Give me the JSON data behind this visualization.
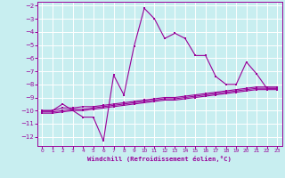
{
  "background_color": "#c8eef0",
  "grid_color": "#ffffff",
  "line_color": "#990099",
  "xlabel": "Windchill (Refroidissement éolien,°C)",
  "xlim": [
    -0.5,
    23.5
  ],
  "ylim": [
    -12.7,
    -1.7
  ],
  "xticks": [
    0,
    1,
    2,
    3,
    4,
    5,
    6,
    7,
    8,
    9,
    10,
    11,
    12,
    13,
    14,
    15,
    16,
    17,
    18,
    19,
    20,
    21,
    22,
    23
  ],
  "yticks": [
    -12,
    -11,
    -10,
    -9,
    -8,
    -7,
    -6,
    -5,
    -4,
    -3,
    -2
  ],
  "curve1_x": [
    0,
    1,
    2,
    3,
    4,
    5,
    6,
    7,
    8,
    9,
    10,
    11,
    12,
    13,
    14,
    15,
    16,
    17,
    18,
    19,
    20,
    21,
    22,
    23
  ],
  "curve1_y": [
    -10,
    -10,
    -9.5,
    -10,
    -10.5,
    -10.5,
    -12.3,
    -7.3,
    -8.8,
    -5.1,
    -2.2,
    -3.0,
    -4.5,
    -4.1,
    -4.5,
    -5.8,
    -5.8,
    -7.4,
    -8.0,
    -8.0,
    -6.3,
    -7.2,
    -8.3,
    -8.3
  ],
  "curve2_x": [
    0,
    1,
    2,
    3,
    4,
    5,
    6,
    7,
    8,
    9,
    10,
    11,
    12,
    13,
    14,
    15,
    16,
    17,
    18,
    19,
    20,
    21,
    22,
    23
  ],
  "curve2_y": [
    -10.0,
    -10.0,
    -9.8,
    -9.8,
    -9.7,
    -9.7,
    -9.6,
    -9.5,
    -9.4,
    -9.3,
    -9.2,
    -9.1,
    -9.0,
    -9.0,
    -8.9,
    -8.8,
    -8.7,
    -8.6,
    -8.5,
    -8.4,
    -8.3,
    -8.2,
    -8.2,
    -8.2
  ],
  "curve3_x": [
    0,
    1,
    2,
    3,
    4,
    5,
    6,
    7,
    8,
    9,
    10,
    11,
    12,
    13,
    14,
    15,
    16,
    17,
    18,
    19,
    20,
    21,
    22,
    23
  ],
  "curve3_y": [
    -10.1,
    -10.1,
    -10.0,
    -9.9,
    -9.9,
    -9.8,
    -9.7,
    -9.6,
    -9.5,
    -9.4,
    -9.3,
    -9.2,
    -9.1,
    -9.1,
    -9.0,
    -8.9,
    -8.8,
    -8.7,
    -8.6,
    -8.5,
    -8.4,
    -8.3,
    -8.3,
    -8.3
  ],
  "curve4_x": [
    0,
    1,
    2,
    3,
    4,
    5,
    6,
    7,
    8,
    9,
    10,
    11,
    12,
    13,
    14,
    15,
    16,
    17,
    18,
    19,
    20,
    21,
    22,
    23
  ],
  "curve4_y": [
    -10.2,
    -10.2,
    -10.1,
    -10.0,
    -10.0,
    -9.9,
    -9.8,
    -9.7,
    -9.6,
    -9.5,
    -9.4,
    -9.3,
    -9.2,
    -9.2,
    -9.1,
    -9.0,
    -8.9,
    -8.8,
    -8.7,
    -8.6,
    -8.5,
    -8.4,
    -8.4,
    -8.4
  ]
}
